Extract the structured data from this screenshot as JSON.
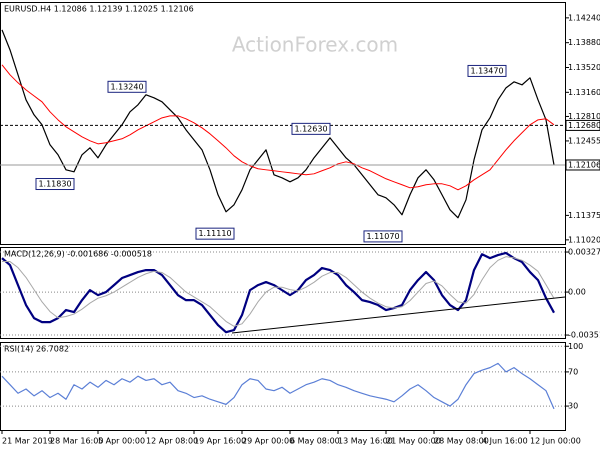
{
  "chart_data": [
    {
      "type": "line",
      "title": "EURUSD.H4  1.12086 1.12139 1.12025 1.12106",
      "watermark": "ActionForex.com",
      "ylim": [
        1.1096,
        1.1447
      ],
      "yticks": [
        {
          "value": 1.1424,
          "label": "1.14240"
        },
        {
          "value": 1.1388,
          "label": "1.13880"
        },
        {
          "value": 1.1352,
          "label": "1.13520"
        },
        {
          "value": 1.1316,
          "label": "1.13160"
        },
        {
          "value": 1.1281,
          "label": "1.12810"
        },
        {
          "value": 1.12455,
          "label": "1.12455"
        },
        {
          "value": 1.11375,
          "label": "1.11375"
        },
        {
          "value": 1.1102,
          "label": "1.11020"
        }
      ],
      "grid": false,
      "series": [
        {
          "color": "#000000",
          "values": [
            1.14066,
            1.13776,
            1.13414,
            1.13051,
            1.12834,
            1.12689,
            1.12399,
            1.12254,
            1.12036,
            1.12007,
            1.12254,
            1.12355,
            1.1221,
            1.12399,
            1.12544,
            1.12689,
            1.12877,
            1.12979,
            1.13124,
            1.1308,
            1.13022,
            1.12906,
            1.1279,
            1.12616,
            1.12471,
            1.12326,
            1.12036,
            1.11674,
            1.11427,
            1.11529,
            1.11746,
            1.12036,
            1.12181,
            1.12326,
            1.11964,
            1.1192,
            1.11862,
            1.1192,
            1.12036,
            1.1221,
            1.12355,
            1.125,
            1.12355,
            1.1221,
            1.12109,
            1.11964,
            1.11819,
            1.11674,
            1.1163,
            1.11529,
            1.11384,
            1.11674,
            1.1192,
            1.12036,
            1.11891,
            1.11674,
            1.11456,
            1.1134,
            1.11601,
            1.12181,
            1.12616,
            1.1279,
            1.13051,
            1.13225,
            1.13312,
            1.13268,
            1.1337,
            1.13051,
            1.12761,
            1.12106
          ]
        },
        {
          "color": "#ff0000",
          "values": [
            1.13559,
            1.13414,
            1.13298,
            1.13196,
            1.13109,
            1.13022,
            1.12877,
            1.12761,
            1.1266,
            1.12587,
            1.12515,
            1.12457,
            1.12413,
            1.12428,
            1.12457,
            1.12486,
            1.12544,
            1.12616,
            1.12674,
            1.12732,
            1.1279,
            1.12819,
            1.12819,
            1.12776,
            1.12718,
            1.12645,
            1.12558,
            1.12457,
            1.12355,
            1.12239,
            1.12152,
            1.12094,
            1.12051,
            1.12036,
            1.12022,
            1.12007,
            1.11993,
            1.11978,
            1.11964,
            1.11978,
            1.12022,
            1.12065,
            1.12123,
            1.12152,
            1.12123,
            1.12065,
            1.12022,
            1.11964,
            1.11906,
            1.11862,
            1.11819,
            1.11775,
            1.1179,
            1.11819,
            1.11833,
            1.11833,
            1.11804,
            1.11746,
            1.11804,
            1.11891,
            1.11964,
            1.12036,
            1.12181,
            1.12326,
            1.12457,
            1.12573,
            1.12689,
            1.12761,
            1.12776,
            1.12689
          ]
        }
      ],
      "levels": [
        {
          "value": 1.1268,
          "label": "1.12680",
          "style": "dashed"
        },
        {
          "value": 1.12106,
          "label": "1.12106",
          "style": "solid"
        }
      ],
      "annotations": [
        {
          "x": 18,
          "value": 1.1324,
          "label": "1.13240"
        },
        {
          "x": 9,
          "value": 1.1183,
          "label": "1.11830"
        },
        {
          "x": 29,
          "value": 1.1111,
          "label": "1.11110"
        },
        {
          "x": 41,
          "value": 1.1263,
          "label": "1.12630"
        },
        {
          "x": 50,
          "value": 1.1107,
          "label": "1.11070"
        },
        {
          "x": 63,
          "value": 1.1347,
          "label": "1.13470"
        }
      ]
    },
    {
      "type": "line",
      "title": "MACD(12,26,9) -0.001686 -0.000518",
      "ylim": [
        -0.00376,
        0.00369
      ],
      "yticks": [
        0.003278,
        {
          "value": 0,
          "label": "0.00"
        },
        -0.003519
      ],
      "grid": true,
      "series": [
        {
          "color": "#000080",
          "values": [
            0.00278,
            0.00221,
            0.00057,
            -0.00106,
            -0.00213,
            -0.00246,
            -0.00246,
            -0.00213,
            -0.00147,
            -0.00164,
            -0.00066,
            0.00016,
            -0.00025,
            0,
            0.00057,
            0.00115,
            0.00139,
            0.00164,
            0.0018,
            0.0018,
            0.00139,
            0.00057,
            -0.00025,
            -0.00066,
            -0.00066,
            -0.00106,
            -0.00188,
            -0.0027,
            -0.00328,
            -0.00311,
            -0.00188,
            0.00016,
            0.00057,
            0.00082,
            0.00057,
            0.00016,
            -0.00025,
            0.00016,
            0.00098,
            0.00139,
            0.00197,
            0.0018,
            0.00139,
            0.00057,
            0,
            -0.00066,
            -0.00082,
            -0.00106,
            -0.00147,
            -0.00131,
            -0.00106,
            0.00016,
            0.00098,
            0.00164,
            0.00098,
            -0.00025,
            -0.00106,
            -0.00147,
            -0.00066,
            0.0018,
            0.0031,
            0.00278,
            0.00303,
            0.0032,
            0.00278,
            0.00246,
            0.00164,
            0.00098,
            -0.00049,
            -0.001686
          ]
        },
        {
          "color": "#a8a8a8",
          "values": [
            0.0025,
            0.0025,
            0.002,
            0.0012,
            0.0002,
            -0.0008,
            -0.0016,
            -0.0021,
            -0.002,
            -0.0018,
            -0.0014,
            -0.0009,
            -0.0005,
            -0.0003,
            0,
            0.0004,
            0.0008,
            0.0012,
            0.0015,
            0.0017,
            0.0016,
            0.0012,
            0.0006,
            0,
            -0.0004,
            -0.0008,
            -0.0012,
            -0.0018,
            -0.0024,
            -0.0028,
            -0.0026,
            -0.0018,
            -0.0008,
            0,
            0.0004,
            0.0004,
            0.0002,
            0.0001,
            0.0004,
            0.0008,
            0.0013,
            0.0016,
            0.0016,
            0.0012,
            0.0006,
            0,
            -0.0005,
            -0.0009,
            -0.0012,
            -0.0013,
            -0.0012,
            -0.0007,
            0,
            0.0007,
            0.0009,
            0.0005,
            -0.0002,
            -0.0008,
            -0.0009,
            -0.0002,
            0.001,
            0.002,
            0.0026,
            0.0029,
            0.0028,
            0.0026,
            0.0022,
            0.0017,
            0.0006,
            -0.000518
          ]
        }
      ]
    },
    {
      "type": "line",
      "title": "RSI(14) 26.7082",
      "ylim": [
        2,
        105
      ],
      "yticks": [
        100,
        70,
        30
      ],
      "grid": true,
      "series": [
        {
          "color": "#5b7fd6",
          "values": [
            65,
            55,
            45,
            50,
            42,
            48,
            40,
            45,
            38,
            55,
            50,
            58,
            52,
            60,
            55,
            62,
            58,
            65,
            60,
            62,
            55,
            58,
            48,
            45,
            40,
            42,
            38,
            35,
            32,
            40,
            55,
            62,
            60,
            50,
            48,
            52,
            45,
            50,
            55,
            58,
            62,
            60,
            55,
            52,
            48,
            45,
            42,
            40,
            38,
            35,
            42,
            50,
            55,
            48,
            40,
            35,
            30,
            38,
            55,
            68,
            72,
            75,
            80,
            70,
            75,
            68,
            62,
            55,
            48,
            26.7082
          ]
        }
      ],
      "categories": [
        "21 Mar 2019",
        null,
        null,
        null,
        null,
        null,
        "28 Mar 16:00",
        null,
        null,
        null,
        null,
        null,
        "5 Apr 00:00",
        null,
        null,
        null,
        null,
        null,
        "12 Apr 08:00",
        null,
        null,
        null,
        null,
        null,
        "19 Apr 16:00",
        null,
        null,
        null,
        null,
        null,
        "29 Apr 00:00",
        null,
        null,
        null,
        null,
        null,
        "6 May 08:00",
        null,
        null,
        null,
        null,
        null,
        "13 May 16:00",
        null,
        null,
        null,
        null,
        null,
        "21 May 00:00",
        null,
        null,
        null,
        null,
        null,
        "28 May 08:00",
        null,
        null,
        null,
        null,
        null,
        "4 Jun 16:00",
        null,
        null,
        null,
        null,
        null,
        "12 Jun 00:00",
        null,
        null,
        null
      ]
    }
  ]
}
